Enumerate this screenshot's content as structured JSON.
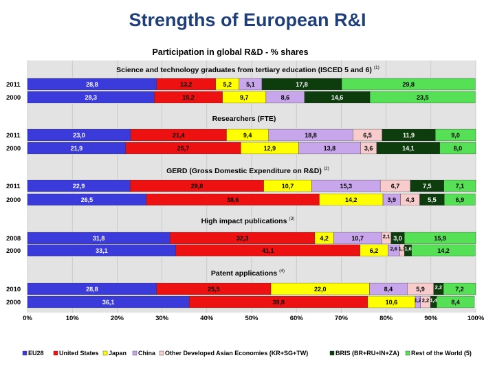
{
  "page_title": "Strengths of European R&I",
  "chart_data": {
    "type": "bar",
    "orientation": "horizontal",
    "stacked": true,
    "percent": true,
    "title": "Participation in global R&D - % shares",
    "xlim": [
      0,
      100
    ],
    "x_ticks": [
      "0%",
      "10%",
      "20%",
      "30%",
      "40%",
      "50%",
      "60%",
      "70%",
      "80%",
      "90%",
      "100%"
    ],
    "colors": [
      "#3b3bdc",
      "#ee1111",
      "#ffff00",
      "#c8a6ec",
      "#f8cccc",
      "#0d3d0d",
      "#55e055"
    ],
    "legend": [
      "EU28",
      "United States",
      "Japan",
      "China",
      "Other Developed Asian Economies  (KR+SG+TW)",
      "BRIS (BR+RU+IN+ZA)",
      "Rest of the World (5)"
    ],
    "groups": [
      {
        "title": "Science and technology graduates from tertiary education (ISCED  5 and 6)",
        "note": "(1)",
        "rows": [
          {
            "year": "2011",
            "values": [
              28.8,
              13.2,
              5.2,
              5.1,
              0,
              17.8,
              29.8
            ],
            "labels": [
              "28,8",
              "13,2",
              "5,2",
              "5,1",
              "",
              "17,8",
              "29,8"
            ]
          },
          {
            "year": "2000",
            "values": [
              28.3,
              15.2,
              9.7,
              8.6,
              0,
              14.6,
              23.5
            ],
            "labels": [
              "28,3",
              "15,2",
              "9,7",
              "8,6",
              "",
              "14,6",
              "23,5"
            ]
          }
        ]
      },
      {
        "title": "Researchers (FTE)",
        "note": "",
        "rows": [
          {
            "year": "2011",
            "values": [
              23.0,
              21.4,
              9.4,
              18.8,
              6.5,
              11.9,
              9.0
            ],
            "labels": [
              "23,0",
              "21,4",
              "9,4",
              "18,8",
              "6,5",
              "11,9",
              "9,0"
            ]
          },
          {
            "year": "2000",
            "values": [
              21.9,
              25.7,
              12.9,
              13.8,
              3.6,
              14.1,
              8.0
            ],
            "labels": [
              "21,9",
              "25,7",
              "12,9",
              "13,8",
              "3,6",
              "14,1",
              "8,0"
            ]
          }
        ]
      },
      {
        "title": "GERD (Gross  Domestic  Expenditure on R&D)",
        "note": "(2)",
        "rows": [
          {
            "year": "2011",
            "values": [
              22.9,
              29.8,
              10.7,
              15.3,
              6.7,
              7.5,
              7.1
            ],
            "labels": [
              "22,9",
              "29,8",
              "10,7",
              "15,3",
              "6,7",
              "7,5",
              "7,1"
            ]
          },
          {
            "year": "2000",
            "values": [
              26.5,
              38.6,
              14.2,
              3.9,
              4.3,
              5.5,
              6.9
            ],
            "labels": [
              "26,5",
              "38,6",
              "14,2",
              "3,9",
              "4,3",
              "5,5",
              "6,9"
            ]
          }
        ]
      },
      {
        "title": "High impact publications",
        "note": "(3)",
        "rows": [
          {
            "year": "2008",
            "values": [
              31.8,
              32.3,
              4.2,
              10.7,
              2.1,
              3.0,
              15.9
            ],
            "labels": [
              "31,8",
              "32,3",
              "4,2",
              "10,7",
              "2,1",
              "3,0",
              "15,9"
            ]
          },
          {
            "year": "2000",
            "values": [
              33.1,
              41.1,
              6.2,
              2.6,
              1.1,
              1.6,
              14.2
            ],
            "labels": [
              "33,1",
              "41,1",
              "6,2",
              "2,6",
              "1,1",
              "1,6",
              "14,2"
            ]
          }
        ]
      },
      {
        "title": "Patent applications",
        "note": "(4)",
        "rows": [
          {
            "year": "2010",
            "values": [
              28.8,
              25.5,
              22.0,
              8.4,
              5.9,
              2.2,
              7.2
            ],
            "labels": [
              "28,8",
              "25,5",
              "22,0",
              "8,4",
              "5,9",
              "2,2",
              "7,2"
            ]
          },
          {
            "year": "2000",
            "values": [
              36.1,
              39.8,
              10.6,
              1.2,
              2.2,
              1.4,
              8.4
            ],
            "labels": [
              "36,1",
              "39,8",
              "10,6",
              "1,2",
              "2,2",
              "1,4",
              "8,4"
            ]
          }
        ]
      }
    ]
  }
}
